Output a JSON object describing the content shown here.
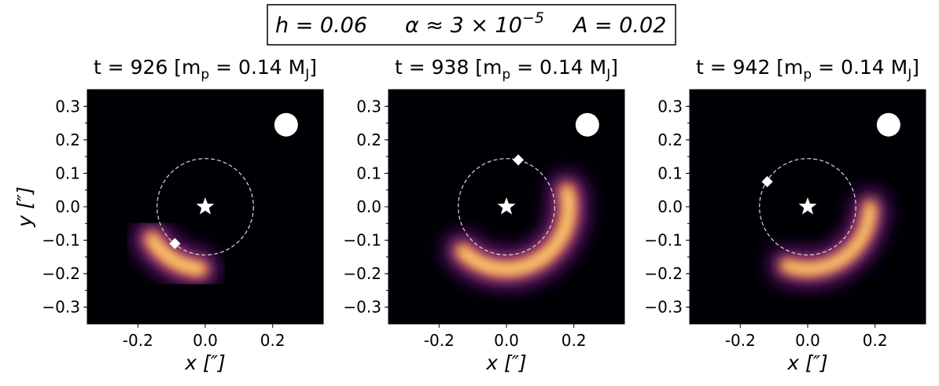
{
  "banner": {
    "h": "h = 0.06",
    "alpha": "α ≈ 3 × 10",
    "alpha_exp": "−5",
    "A": "A = 0.02"
  },
  "chart_data": [
    {
      "type": "heatmap",
      "title": "t = 926 [m",
      "title_sub": "p",
      "title_mid": " = 0.14 M",
      "title_sub2": "J",
      "title_end": "]",
      "xlabel": "x [″]",
      "ylabel": "y [″]",
      "xlim": [
        -0.35,
        0.35
      ],
      "ylim": [
        -0.35,
        0.35
      ],
      "xticks": [
        -0.2,
        0.0,
        0.2
      ],
      "xtick_labels": [
        "-0.2",
        "0.0",
        "0.2"
      ],
      "yticks": [
        0.3,
        0.2,
        0.1,
        0.0,
        -0.1,
        -0.2,
        -0.3
      ],
      "ytick_labels": [
        "0.3",
        "0.2",
        "0.1",
        "0.0",
        "−0.1",
        "−0.2",
        "−0.3"
      ],
      "orbit_radius": 0.143,
      "star": [
        0.0,
        0.0
      ],
      "planet": [
        -0.09,
        -0.11
      ],
      "beam": [
        0.24,
        0.245
      ],
      "blob": {
        "center_angle_deg": 238,
        "radius": 0.185,
        "arc_span_deg": 55,
        "width": 0.055
      }
    },
    {
      "type": "heatmap",
      "title": "t = 938 [m",
      "title_sub": "p",
      "title_mid": " = 0.14 M",
      "title_sub2": "J",
      "title_end": "]",
      "xlabel": "x [″]",
      "ylabel": "",
      "xlim": [
        -0.35,
        0.35
      ],
      "ylim": [
        -0.35,
        0.35
      ],
      "xticks": [
        -0.2,
        0.0,
        0.2
      ],
      "xtick_labels": [
        "-0.2",
        "0.0",
        "0.2"
      ],
      "yticks": [
        0.3,
        0.2,
        0.1,
        0.0,
        -0.1,
        -0.2,
        -0.3
      ],
      "ytick_labels": [
        "0.3",
        "0.2",
        "0.1",
        "0.0",
        "−0.1",
        "−0.2",
        "−0.3"
      ],
      "orbit_radius": 0.143,
      "star": [
        0.0,
        0.0
      ],
      "planet": [
        0.035,
        0.14
      ],
      "beam": [
        0.24,
        0.245
      ],
      "blob": {
        "center_angle_deg": 300,
        "radius": 0.185,
        "arc_span_deg": 150,
        "width": 0.055
      }
    },
    {
      "type": "heatmap",
      "title": "t = 942 [m",
      "title_sub": "p",
      "title_mid": " = 0.14 M",
      "title_sub2": "J",
      "title_end": "]",
      "xlabel": "x [″]",
      "ylabel": "",
      "xlim": [
        -0.35,
        0.35
      ],
      "ylim": [
        -0.35,
        0.35
      ],
      "xticks": [
        -0.2,
        0.0,
        0.2
      ],
      "xtick_labels": [
        "-0.2",
        "0.0",
        "0.2"
      ],
      "yticks": [
        0.3,
        0.2,
        0.1,
        0.0,
        -0.1,
        -0.2,
        -0.3
      ],
      "ytick_labels": [
        "0.3",
        "0.2",
        "0.1",
        "0.0",
        "−0.1",
        "−0.2",
        "−0.3"
      ],
      "orbit_radius": 0.143,
      "star": [
        0.0,
        0.0
      ],
      "planet": [
        -0.12,
        0.075
      ],
      "beam": [
        0.24,
        0.245
      ],
      "blob": {
        "center_angle_deg": 305,
        "radius": 0.185,
        "arc_span_deg": 110,
        "width": 0.05
      }
    }
  ]
}
